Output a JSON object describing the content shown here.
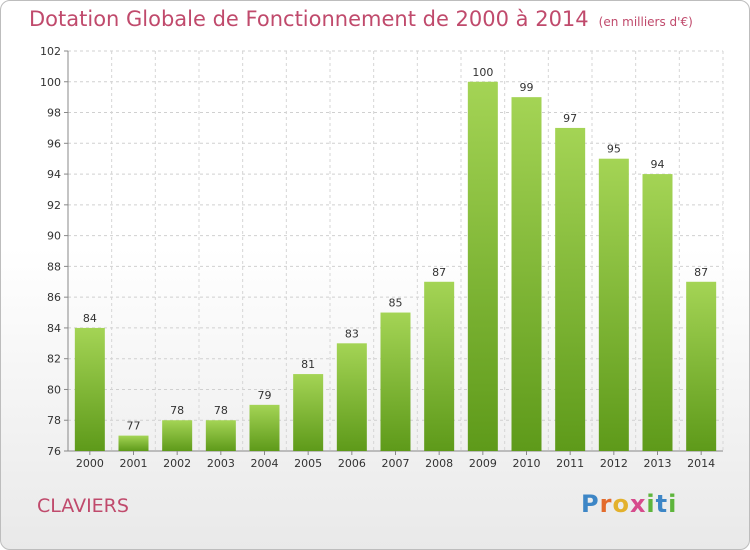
{
  "header": {
    "title": "Dotation Globale de Fonctionnement de 2000 à 2014",
    "subtitle": "(en milliers d'€)"
  },
  "footer": {
    "commune": "CLAVIERS",
    "logo": "Proxiti"
  },
  "colors": {
    "title": "#c04a6c",
    "bar_top": "#a4d455",
    "bar_bottom": "#5e9a1a"
  },
  "chart_data": {
    "type": "bar",
    "categories": [
      "2000",
      "2001",
      "2002",
      "2003",
      "2004",
      "2005",
      "2006",
      "2007",
      "2008",
      "2009",
      "2010",
      "2011",
      "2012",
      "2013",
      "2014"
    ],
    "values": [
      84,
      77,
      78,
      78,
      79,
      81,
      83,
      85,
      87,
      100,
      99,
      97,
      95,
      94,
      87
    ],
    "ylim": [
      76,
      102
    ],
    "yticks": [
      76,
      78,
      80,
      82,
      84,
      86,
      88,
      90,
      92,
      94,
      96,
      98,
      100,
      102
    ],
    "grid": true,
    "title": "Dotation Globale de Fonctionnement de 2000 à 2014",
    "subtitle": "(en milliers d'€)",
    "xlabel": "",
    "ylabel": ""
  }
}
